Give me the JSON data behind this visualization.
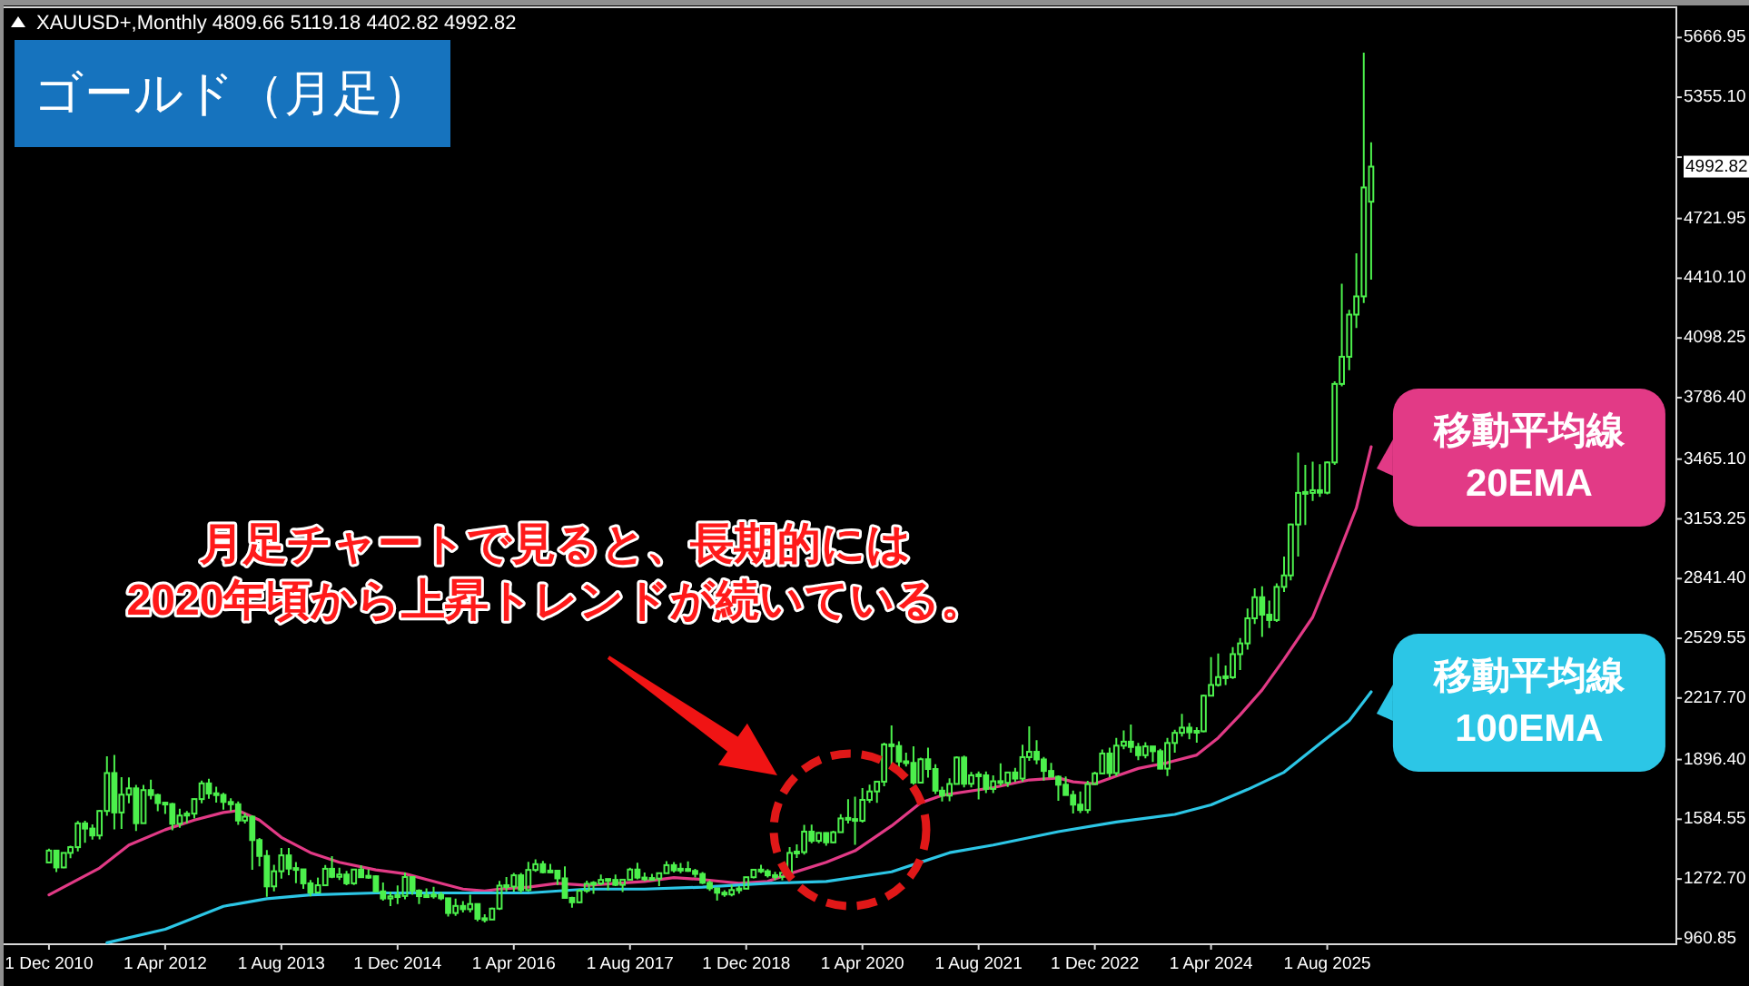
{
  "chart_data": {
    "type": "candlestick",
    "title": "ゴールド（月足）",
    "subtitle": "XAUUSD+,Monthly 4809.66 5119.18 4402.82 4992.82",
    "x": [
      "2010-12",
      "2011-01",
      "2011-02",
      "2011-03",
      "2011-04",
      "2011-05",
      "2011-06",
      "2011-07",
      "2011-08",
      "2011-09",
      "2011-10",
      "2011-11",
      "2011-12",
      "2012-01",
      "2012-02",
      "2012-03",
      "2012-04",
      "2012-05",
      "2012-06",
      "2012-07",
      "2012-08",
      "2012-09",
      "2012-10",
      "2012-11",
      "2012-12",
      "2013-01",
      "2013-02",
      "2013-03",
      "2013-04",
      "2013-05",
      "2013-06",
      "2013-07",
      "2013-08",
      "2013-09",
      "2013-10",
      "2013-11",
      "2013-12",
      "2014-01",
      "2014-02",
      "2014-03",
      "2014-04",
      "2014-05",
      "2014-06",
      "2014-07",
      "2014-08",
      "2014-09",
      "2014-10",
      "2014-11",
      "2014-12",
      "2015-01",
      "2015-02",
      "2015-03",
      "2015-04",
      "2015-05",
      "2015-06",
      "2015-07",
      "2015-08",
      "2015-09",
      "2015-10",
      "2015-11",
      "2015-12",
      "2016-01",
      "2016-02",
      "2016-03",
      "2016-04",
      "2016-05",
      "2016-06",
      "2016-07",
      "2016-08",
      "2016-09",
      "2016-10",
      "2016-11",
      "2016-12",
      "2017-01",
      "2017-02",
      "2017-03",
      "2017-04",
      "2017-05",
      "2017-06",
      "2017-07",
      "2017-08",
      "2017-09",
      "2017-10",
      "2017-11",
      "2017-12",
      "2018-01",
      "2018-02",
      "2018-03",
      "2018-04",
      "2018-05",
      "2018-06",
      "2018-07",
      "2018-08",
      "2018-09",
      "2018-10",
      "2018-11",
      "2018-12",
      "2019-01",
      "2019-02",
      "2019-03",
      "2019-04",
      "2019-05",
      "2019-06",
      "2019-07",
      "2019-08",
      "2019-09",
      "2019-10",
      "2019-11",
      "2019-12",
      "2020-01",
      "2020-02",
      "2020-03",
      "2020-04",
      "2020-05",
      "2020-06",
      "2020-07",
      "2020-08",
      "2020-09",
      "2020-10",
      "2020-11",
      "2020-12",
      "2021-01",
      "2021-02",
      "2021-03",
      "2021-04",
      "2021-05",
      "2021-06",
      "2021-07",
      "2021-08",
      "2021-09",
      "2021-10",
      "2021-11",
      "2021-12",
      "2022-01",
      "2022-02",
      "2022-03",
      "2022-04",
      "2022-05",
      "2022-06",
      "2022-07",
      "2022-08",
      "2022-09",
      "2022-10",
      "2022-11",
      "2022-12",
      "2023-01",
      "2023-02",
      "2023-03",
      "2023-04",
      "2023-05",
      "2023-06",
      "2023-07",
      "2023-08",
      "2023-09",
      "2023-10",
      "2023-11",
      "2023-12",
      "2024-01",
      "2024-02",
      "2024-03",
      "2024-04",
      "2024-05",
      "2024-06",
      "2024-07",
      "2024-08",
      "2024-09",
      "2024-10",
      "2024-11",
      "2024-12",
      "2025-01",
      "2025-02",
      "2025-03",
      "2025-04",
      "2025-05",
      "2025-06",
      "2025-07",
      "2025-08",
      "2025-09",
      "2025-10",
      "2025-11",
      "2025-12",
      "2026-01",
      "2026-02"
    ],
    "ohlc": [
      [
        1359,
        1431,
        1359,
        1421
      ],
      [
        1421,
        1424,
        1309,
        1333
      ],
      [
        1333,
        1411,
        1329,
        1409
      ],
      [
        1409,
        1447,
        1381,
        1439
      ],
      [
        1439,
        1576,
        1417,
        1563
      ],
      [
        1563,
        1577,
        1462,
        1536
      ],
      [
        1536,
        1558,
        1478,
        1500
      ],
      [
        1500,
        1632,
        1480,
        1628
      ],
      [
        1628,
        1913,
        1603,
        1826
      ],
      [
        1826,
        1921,
        1532,
        1620
      ],
      [
        1620,
        1804,
        1534,
        1713
      ],
      [
        1713,
        1803,
        1668,
        1746
      ],
      [
        1746,
        1764,
        1523,
        1564
      ],
      [
        1564,
        1764,
        1564,
        1737
      ],
      [
        1737,
        1791,
        1688,
        1711
      ],
      [
        1711,
        1718,
        1627,
        1669
      ],
      [
        1669,
        1676,
        1612,
        1664
      ],
      [
        1664,
        1670,
        1527,
        1561
      ],
      [
        1561,
        1640,
        1540,
        1604
      ],
      [
        1604,
        1628,
        1564,
        1614
      ],
      [
        1614,
        1693,
        1589,
        1690
      ],
      [
        1690,
        1787,
        1668,
        1772
      ],
      [
        1772,
        1796,
        1692,
        1719
      ],
      [
        1719,
        1755,
        1672,
        1712
      ],
      [
        1712,
        1723,
        1635,
        1675
      ],
      [
        1675,
        1694,
        1626,
        1663
      ],
      [
        1663,
        1678,
        1555,
        1578
      ],
      [
        1578,
        1617,
        1563,
        1598
      ],
      [
        1598,
        1605,
        1321,
        1476
      ],
      [
        1476,
        1487,
        1338,
        1393
      ],
      [
        1393,
        1424,
        1180,
        1234
      ],
      [
        1234,
        1347,
        1208,
        1313
      ],
      [
        1313,
        1434,
        1275,
        1396
      ],
      [
        1396,
        1434,
        1292,
        1327
      ],
      [
        1327,
        1361,
        1251,
        1323
      ],
      [
        1323,
        1323,
        1221,
        1250
      ],
      [
        1250,
        1267,
        1182,
        1202
      ],
      [
        1202,
        1280,
        1202,
        1240
      ],
      [
        1240,
        1346,
        1237,
        1326
      ],
      [
        1326,
        1392,
        1277,
        1284
      ],
      [
        1284,
        1331,
        1268,
        1296
      ],
      [
        1296,
        1315,
        1240,
        1250
      ],
      [
        1250,
        1326,
        1241,
        1322
      ],
      [
        1322,
        1345,
        1281,
        1282
      ],
      [
        1282,
        1323,
        1273,
        1287
      ],
      [
        1287,
        1292,
        1206,
        1208
      ],
      [
        1208,
        1255,
        1160,
        1171
      ],
      [
        1171,
        1207,
        1131,
        1182
      ],
      [
        1182,
        1239,
        1142,
        1184
      ],
      [
        1184,
        1307,
        1167,
        1283
      ],
      [
        1283,
        1288,
        1191,
        1212
      ],
      [
        1212,
        1219,
        1142,
        1183
      ],
      [
        1183,
        1224,
        1175,
        1183
      ],
      [
        1183,
        1232,
        1170,
        1190
      ],
      [
        1190,
        1205,
        1162,
        1172
      ],
      [
        1172,
        1174,
        1077,
        1095
      ],
      [
        1095,
        1170,
        1080,
        1132
      ],
      [
        1132,
        1157,
        1098,
        1115
      ],
      [
        1115,
        1191,
        1098,
        1142
      ],
      [
        1142,
        1142,
        1052,
        1065
      ],
      [
        1065,
        1088,
        1046,
        1061
      ],
      [
        1061,
        1123,
        1061,
        1118
      ],
      [
        1118,
        1263,
        1111,
        1238
      ],
      [
        1238,
        1283,
        1208,
        1233
      ],
      [
        1233,
        1304,
        1207,
        1292
      ],
      [
        1292,
        1304,
        1200,
        1215
      ],
      [
        1215,
        1362,
        1208,
        1320
      ],
      [
        1320,
        1375,
        1310,
        1350
      ],
      [
        1350,
        1367,
        1302,
        1308
      ],
      [
        1308,
        1352,
        1303,
        1316
      ],
      [
        1316,
        1317,
        1241,
        1276
      ],
      [
        1276,
        1338,
        1171,
        1174
      ],
      [
        1174,
        1180,
        1123,
        1151
      ],
      [
        1151,
        1220,
        1146,
        1211
      ],
      [
        1211,
        1264,
        1200,
        1248
      ],
      [
        1248,
        1262,
        1195,
        1249
      ],
      [
        1249,
        1296,
        1240,
        1268
      ],
      [
        1268,
        1270,
        1214,
        1268
      ],
      [
        1268,
        1296,
        1236,
        1242
      ],
      [
        1242,
        1271,
        1205,
        1269
      ],
      [
        1269,
        1331,
        1266,
        1322
      ],
      [
        1322,
        1357,
        1271,
        1280
      ],
      [
        1280,
        1306,
        1261,
        1271
      ],
      [
        1271,
        1299,
        1264,
        1275
      ],
      [
        1275,
        1307,
        1236,
        1303
      ],
      [
        1303,
        1366,
        1302,
        1345
      ],
      [
        1345,
        1361,
        1307,
        1318
      ],
      [
        1318,
        1356,
        1303,
        1325
      ],
      [
        1325,
        1365,
        1310,
        1315
      ],
      [
        1315,
        1326,
        1281,
        1299
      ],
      [
        1299,
        1309,
        1246,
        1253
      ],
      [
        1253,
        1265,
        1211,
        1224
      ],
      [
        1224,
        1224,
        1160,
        1201
      ],
      [
        1201,
        1214,
        1180,
        1192
      ],
      [
        1192,
        1243,
        1182,
        1215
      ],
      [
        1215,
        1237,
        1196,
        1222
      ],
      [
        1222,
        1284,
        1221,
        1282
      ],
      [
        1282,
        1326,
        1276,
        1321
      ],
      [
        1321,
        1347,
        1303,
        1313
      ],
      [
        1313,
        1324,
        1281,
        1292
      ],
      [
        1292,
        1310,
        1266,
        1284
      ],
      [
        1284,
        1305,
        1266,
        1305
      ],
      [
        1305,
        1439,
        1301,
        1409
      ],
      [
        1409,
        1453,
        1382,
        1413
      ],
      [
        1413,
        1555,
        1400,
        1520
      ],
      [
        1520,
        1557,
        1459,
        1472
      ],
      [
        1472,
        1517,
        1459,
        1513
      ],
      [
        1513,
        1516,
        1446,
        1464
      ],
      [
        1464,
        1525,
        1459,
        1517
      ],
      [
        1517,
        1611,
        1517,
        1589
      ],
      [
        1589,
        1689,
        1562,
        1585
      ],
      [
        1585,
        1703,
        1451,
        1577
      ],
      [
        1577,
        1747,
        1567,
        1686
      ],
      [
        1686,
        1765,
        1670,
        1730
      ],
      [
        1730,
        1786,
        1671,
        1781
      ],
      [
        1781,
        1984,
        1757,
        1975
      ],
      [
        1975,
        2075,
        1863,
        1967
      ],
      [
        1967,
        1992,
        1849,
        1886
      ],
      [
        1886,
        1933,
        1860,
        1879
      ],
      [
        1879,
        1965,
        1765,
        1776
      ],
      [
        1776,
        1906,
        1775,
        1898
      ],
      [
        1898,
        1959,
        1802,
        1847
      ],
      [
        1847,
        1872,
        1717,
        1734
      ],
      [
        1734,
        1755,
        1677,
        1708
      ],
      [
        1708,
        1798,
        1679,
        1769
      ],
      [
        1769,
        1913,
        1766,
        1907
      ],
      [
        1907,
        1917,
        1751,
        1770
      ],
      [
        1770,
        1832,
        1751,
        1814
      ],
      [
        1814,
        1834,
        1688,
        1814
      ],
      [
        1814,
        1834,
        1721,
        1743
      ],
      [
        1743,
        1814,
        1721,
        1783
      ],
      [
        1783,
        1877,
        1759,
        1775
      ],
      [
        1775,
        1831,
        1753,
        1829
      ],
      [
        1829,
        1853,
        1780,
        1797
      ],
      [
        1797,
        1974,
        1781,
        1909
      ],
      [
        1909,
        2070,
        1890,
        1937
      ],
      [
        1937,
        1998,
        1872,
        1897
      ],
      [
        1897,
        1910,
        1787,
        1837
      ],
      [
        1837,
        1879,
        1805,
        1807
      ],
      [
        1807,
        1814,
        1681,
        1765
      ],
      [
        1765,
        1808,
        1709,
        1711
      ],
      [
        1711,
        1735,
        1615,
        1661
      ],
      [
        1661,
        1730,
        1617,
        1633
      ],
      [
        1633,
        1786,
        1616,
        1768
      ],
      [
        1768,
        1833,
        1765,
        1824
      ],
      [
        1824,
        1949,
        1823,
        1928
      ],
      [
        1928,
        1959,
        1804,
        1826
      ],
      [
        1826,
        2009,
        1810,
        1969
      ],
      [
        1969,
        2048,
        1950,
        1990
      ],
      [
        1990,
        2079,
        1932,
        1962
      ],
      [
        1962,
        1983,
        1893,
        1919
      ],
      [
        1919,
        1987,
        1903,
        1965
      ],
      [
        1965,
        1966,
        1884,
        1940
      ],
      [
        1940,
        1953,
        1846,
        1849
      ],
      [
        1849,
        2010,
        1810,
        1983
      ],
      [
        1983,
        2052,
        1932,
        2036
      ],
      [
        2036,
        2135,
        2016,
        2063
      ],
      [
        2063,
        2088,
        2002,
        2039
      ],
      [
        2039,
        2065,
        1984,
        2044
      ],
      [
        2044,
        2236,
        2039,
        2230
      ],
      [
        2230,
        2431,
        2228,
        2286
      ],
      [
        2286,
        2450,
        2277,
        2327
      ],
      [
        2327,
        2387,
        2286,
        2326
      ],
      [
        2326,
        2484,
        2318,
        2447
      ],
      [
        2447,
        2531,
        2364,
        2503
      ],
      [
        2503,
        2685,
        2471,
        2634
      ],
      [
        2634,
        2790,
        2604,
        2744
      ],
      [
        2744,
        2801,
        2537,
        2653
      ],
      [
        2653,
        2726,
        2583,
        2625
      ],
      [
        2625,
        2817,
        2615,
        2798
      ],
      [
        2798,
        2956,
        2772,
        2858
      ],
      [
        2858,
        3128,
        2832,
        3124
      ],
      [
        3124,
        3500,
        2957,
        3289
      ],
      [
        3289,
        3435,
        3121,
        3289
      ],
      [
        3289,
        3452,
        3247,
        3303
      ],
      [
        3303,
        3439,
        3268,
        3290
      ],
      [
        3290,
        3453,
        3281,
        3448
      ],
      [
        3448,
        3871,
        3436,
        3858
      ],
      [
        3858,
        4381,
        3845,
        4000
      ],
      [
        4000,
        4245,
        3930,
        4220
      ],
      [
        4220,
        4540,
        4150,
        4315
      ],
      [
        4315,
        5588,
        4280,
        4884
      ],
      [
        4809.66,
        5119.18,
        4402.82,
        4992.82
      ]
    ],
    "color": "#4cf04c",
    "series": [
      {
        "type": "line",
        "name": "移動平均線\n20EMA",
        "color": "#e23a86",
        "x": [
          "2010-12",
          "2011-07",
          "2011-11",
          "2012-04",
          "2012-08",
          "2012-12",
          "2013-02",
          "2013-05",
          "2013-08",
          "2013-12",
          "2014-04",
          "2014-09",
          "2015-01",
          "2015-05",
          "2015-09",
          "2015-12",
          "2016-02",
          "2016-06",
          "2016-10",
          "2017-02",
          "2017-10",
          "2018-02",
          "2018-06",
          "2018-11",
          "2019-03",
          "2019-06",
          "2019-11",
          "2020-03",
          "2020-08",
          "2020-12",
          "2021-03",
          "2021-10",
          "2022-03",
          "2022-07",
          "2022-09",
          "2022-12",
          "2023-03",
          "2023-06",
          "2023-10",
          "2024-02",
          "2024-05",
          "2024-08",
          "2024-11",
          "2025-02",
          "2025-06",
          "2025-09",
          "2025-12",
          "2026-02"
        ],
        "values": [
          1190,
          1330,
          1450,
          1530,
          1580,
          1620,
          1630,
          1580,
          1490,
          1410,
          1360,
          1320,
          1300,
          1260,
          1220,
          1210,
          1220,
          1230,
          1250,
          1240,
          1260,
          1280,
          1270,
          1250,
          1260,
          1300,
          1360,
          1420,
          1550,
          1670,
          1710,
          1750,
          1790,
          1800,
          1780,
          1770,
          1810,
          1850,
          1880,
          1920,
          2010,
          2130,
          2260,
          2420,
          2640,
          2920,
          3210,
          3530
        ]
      },
      {
        "type": "line",
        "name": "移動平均線\n100EMA",
        "color": "#2cc6e6",
        "x": [
          "2011-08",
          "2012-04",
          "2012-12",
          "2013-06",
          "2013-12",
          "2014-09",
          "2015-09",
          "2016-06",
          "2017-02",
          "2017-10",
          "2018-06",
          "2019-03",
          "2019-11",
          "2020-08",
          "2021-04",
          "2021-10",
          "2022-07",
          "2023-03",
          "2023-11",
          "2024-04",
          "2024-09",
          "2025-02",
          "2025-07",
          "2025-11",
          "2026-02"
        ],
        "values": [
          940,
          1010,
          1130,
          1170,
          1190,
          1200,
          1200,
          1200,
          1220,
          1220,
          1230,
          1250,
          1260,
          1310,
          1410,
          1450,
          1520,
          1570,
          1610,
          1660,
          1740,
          1830,
          1980,
          2100,
          2250
        ]
      }
    ],
    "xlim": [
      "2010-05-25",
      "2029-08-03"
    ],
    "xticks": [
      {
        "value": "2010-12",
        "label": "1 Dec 2010"
      },
      {
        "value": "2012-04",
        "label": "1 Apr 2012"
      },
      {
        "value": "2013-08",
        "label": "1 Aug 2013"
      },
      {
        "value": "2014-12",
        "label": "1 Dec 2014"
      },
      {
        "value": "2016-04",
        "label": "1 Apr 2016"
      },
      {
        "value": "2017-08",
        "label": "1 Aug 2017"
      },
      {
        "value": "2018-12",
        "label": "1 Dec 2018"
      },
      {
        "value": "2020-04",
        "label": "1 Apr 2020"
      },
      {
        "value": "2021-08",
        "label": "1 Aug 2021"
      },
      {
        "value": "2022-12",
        "label": "1 Dec 2022"
      },
      {
        "value": "2024-04",
        "label": "1 Apr 2024"
      },
      {
        "value": "2025-08",
        "label": "1 Aug 2025"
      }
    ],
    "ylim": [
      932,
      5825
    ],
    "yticks": [
      {
        "value": 960.85,
        "label": "960.85"
      },
      {
        "value": 1272.7,
        "label": "1272.70"
      },
      {
        "value": 1584.55,
        "label": "1584.55"
      },
      {
        "value": 1896.4,
        "label": "1896.40"
      },
      {
        "value": 2217.7,
        "label": "2217.70"
      },
      {
        "value": 2529.55,
        "label": "2529.55"
      },
      {
        "value": 2841.4,
        "label": "2841.40"
      },
      {
        "value": 3153.25,
        "label": "3153.25"
      },
      {
        "value": 3465.1,
        "label": "3465.10"
      },
      {
        "value": 3786.4,
        "label": "3786.40"
      },
      {
        "value": 4098.25,
        "label": "4098.25"
      },
      {
        "value": 4410.1,
        "label": "4410.10"
      },
      {
        "value": 4721.95,
        "label": "4721.95"
      },
      {
        "value": 5042.25,
        "label": null
      },
      {
        "value": 5355.1,
        "label": "5355.10"
      },
      {
        "value": 5666.95,
        "label": "5666.95"
      }
    ],
    "legend": "right",
    "annotations": [
      "月足チャートで見ると、長期的には\n2020年頃から上昇トレンドが続いている。",
      "4992.82"
    ]
  }
}
